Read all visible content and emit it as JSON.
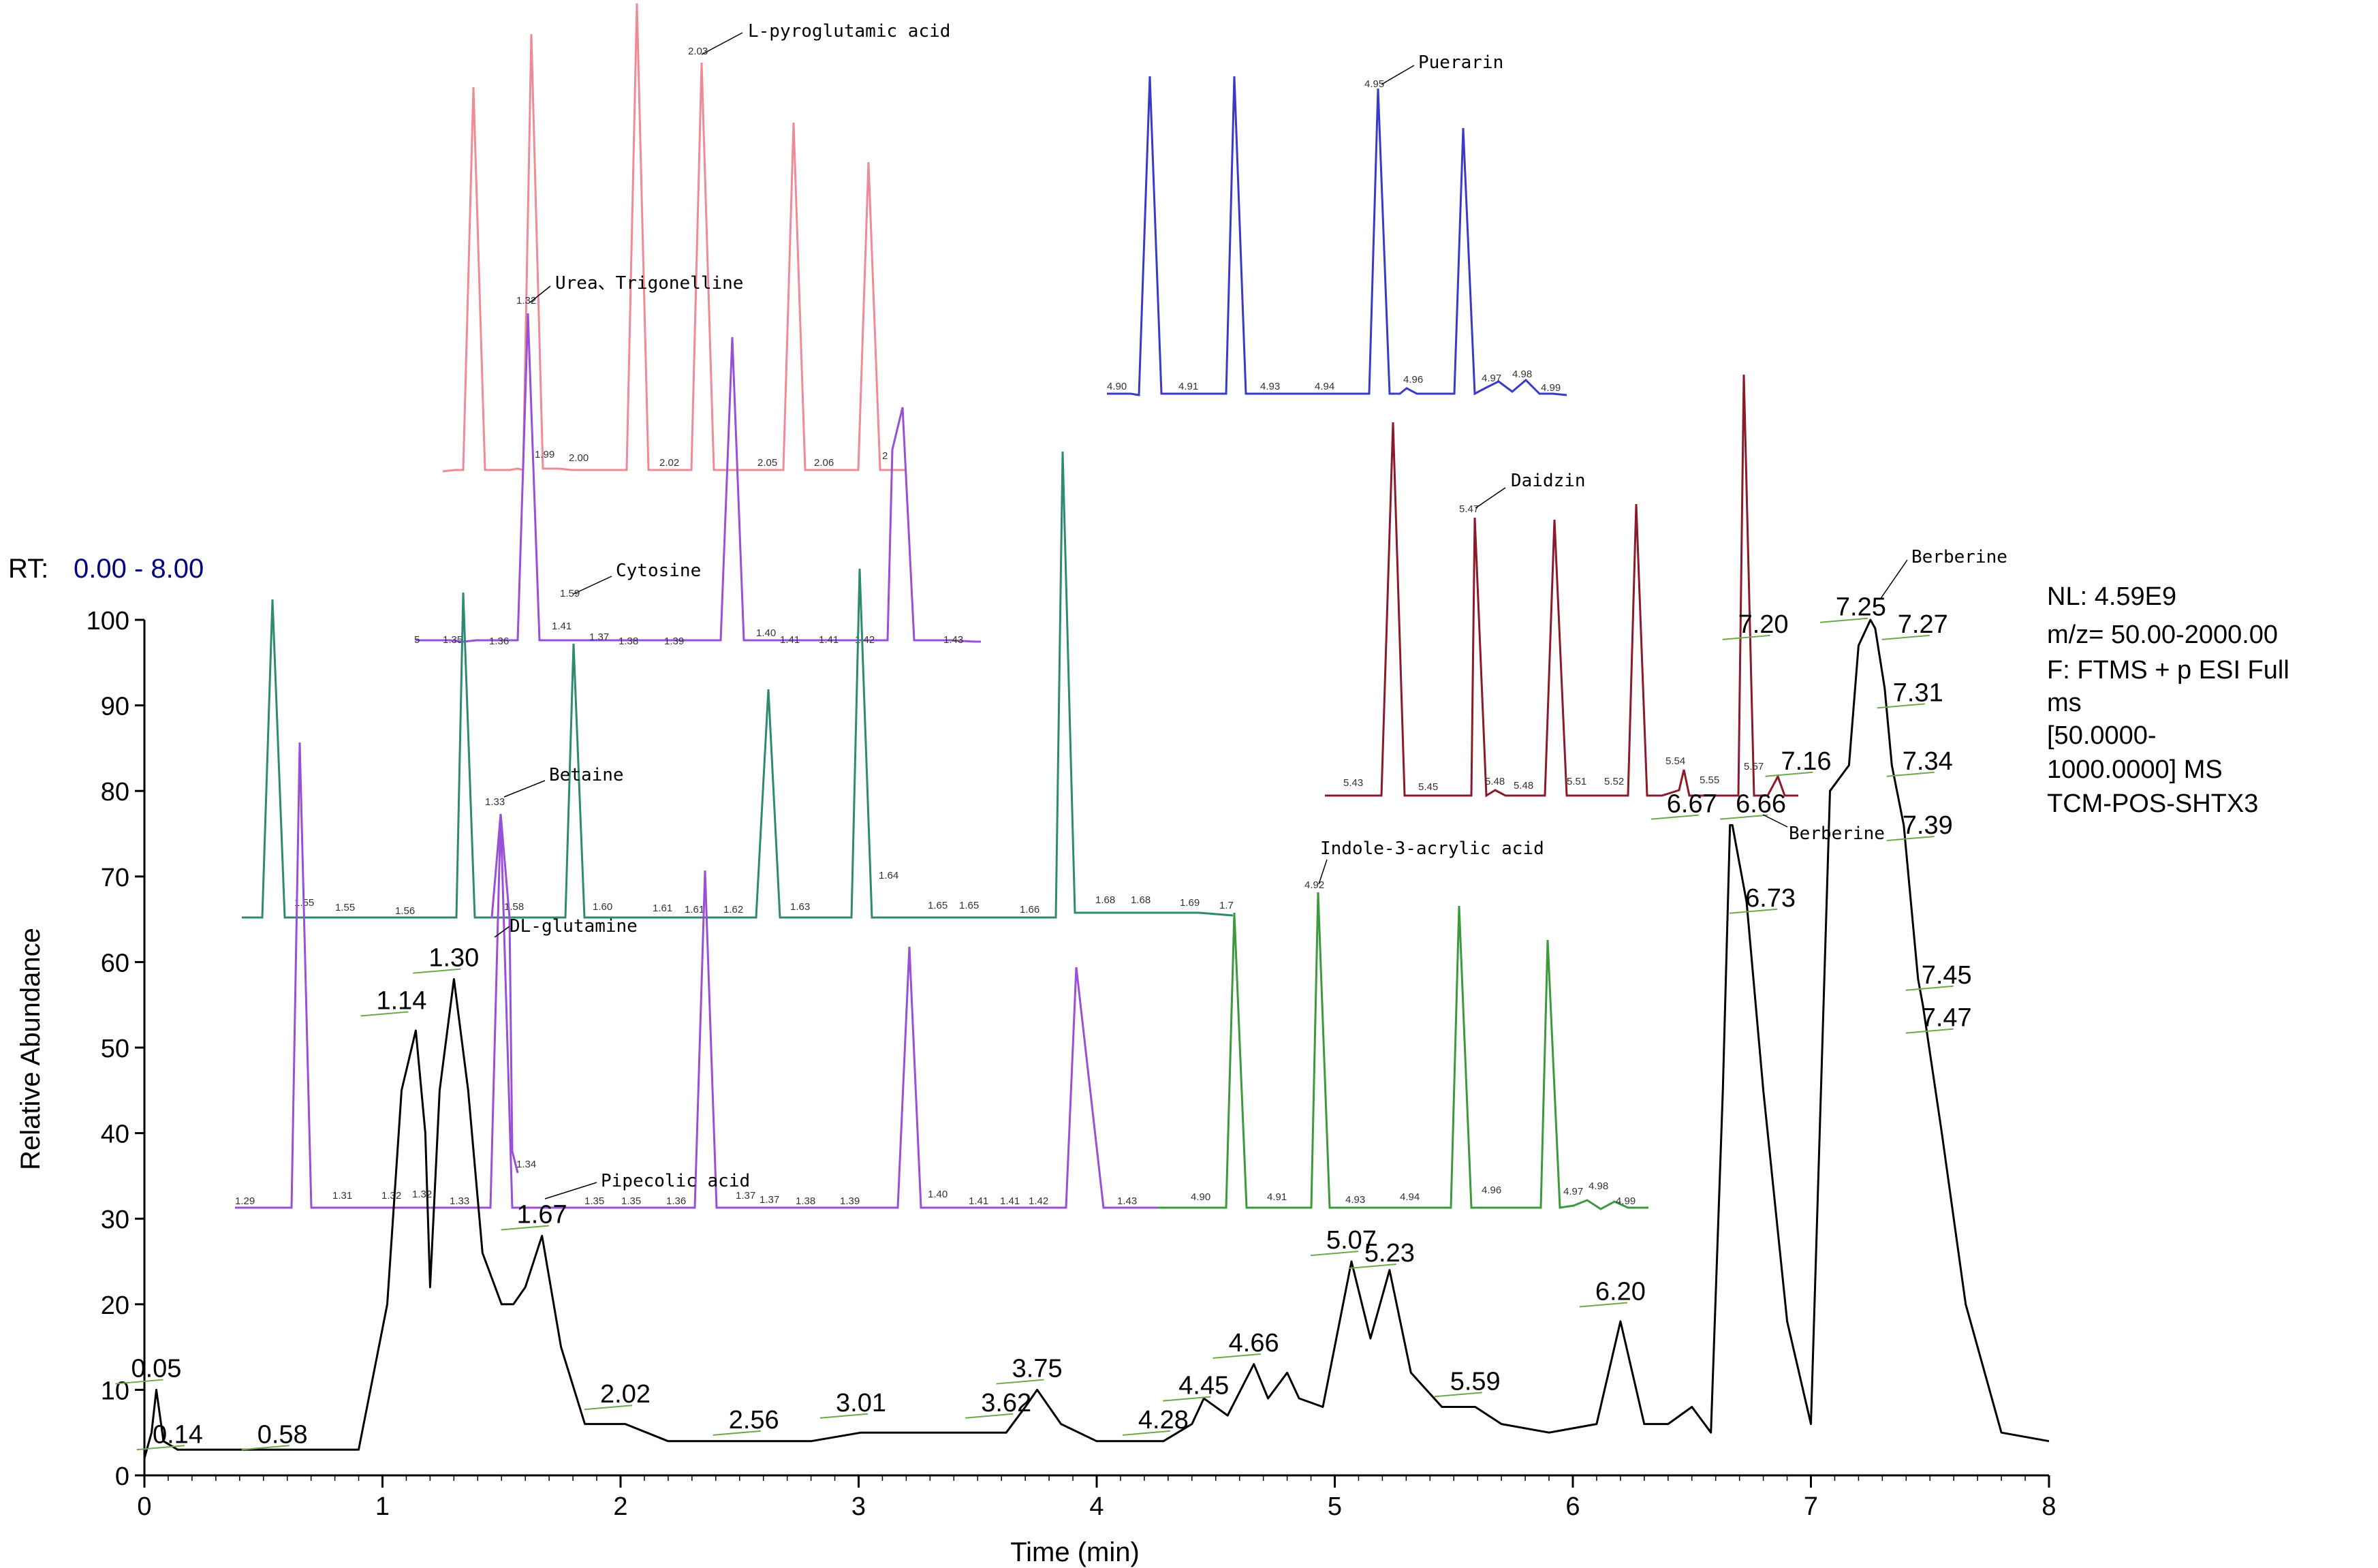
{
  "rt_label": "RT:",
  "rt_range": "0.00 - 8.00",
  "info_lines": [
    "NL: 4.59E9",
    "m/z= 50.00-2000.00",
    "F: FTMS + p ESI Full",
    "ms",
    "[50.0000-",
    "1000.0000]  MS",
    "TCM-POS-SHTX3"
  ],
  "colors": {
    "main": "#000000",
    "pink": "#f08a96",
    "violet": "#9a4fd8",
    "teal": "#2e8b72",
    "green": "#3c9a3c",
    "blue": "#3a3ac8",
    "maroon": "#8b1a2a",
    "annotation_line": "#6aaa4a",
    "rt_value": "#00007f"
  },
  "chart_data": [
    {
      "type": "line",
      "xlabel": "Time (min)",
      "ylabel": "Relative Abundance",
      "xlim": [
        0,
        8
      ],
      "ylim": [
        0,
        100
      ],
      "x_ticks": [
        "0",
        "1",
        "2",
        "3",
        "4",
        "5",
        "6",
        "7",
        "8"
      ],
      "y_ticks": [
        "0",
        "10",
        "20",
        "30",
        "40",
        "50",
        "60",
        "70",
        "80",
        "90",
        "100"
      ],
      "grid": false,
      "series": [
        {
          "x": [
            0,
            0.03,
            0.05,
            0.08,
            0.14,
            0.3,
            0.58,
            0.9,
            1.02,
            1.08,
            1.14,
            1.18,
            1.2,
            1.24,
            1.3,
            1.36,
            1.42,
            1.5,
            1.55,
            1.6,
            1.67,
            1.75,
            1.85,
            2.02,
            2.2,
            2.4,
            2.56,
            2.8,
            3.01,
            3.3,
            3.62,
            3.7,
            3.75,
            3.85,
            4.0,
            4.28,
            4.4,
            4.45,
            4.55,
            4.66,
            4.72,
            4.8,
            4.85,
            4.95,
            5.07,
            5.15,
            5.23,
            5.32,
            5.45,
            5.59,
            5.7,
            5.9,
            6.1,
            6.2,
            6.3,
            6.4,
            6.5,
            6.58,
            6.63,
            6.66,
            6.67,
            6.73,
            6.8,
            6.9,
            7.0,
            7.08,
            7.16,
            7.2,
            7.25,
            7.27,
            7.31,
            7.34,
            7.39,
            7.45,
            7.47,
            7.55,
            7.65,
            7.8,
            8.0
          ],
          "y": [
            2,
            5,
            10,
            4,
            3,
            3,
            3,
            3,
            20,
            45,
            52,
            40,
            22,
            45,
            58,
            45,
            26,
            20,
            20,
            22,
            28,
            15,
            6,
            6,
            4,
            4,
            4,
            4,
            5,
            5,
            5,
            8,
            10,
            6,
            4,
            4,
            6,
            9,
            7,
            13,
            9,
            12,
            9,
            8,
            25,
            16,
            24,
            12,
            8,
            8,
            6,
            5,
            6,
            18,
            6,
            6,
            8,
            5,
            45,
            76,
            76,
            67,
            45,
            18,
            6,
            80,
            83,
            97,
            100,
            99,
            92,
            83,
            76,
            58,
            55,
            40,
            20,
            5,
            4
          ]
        }
      ],
      "annotations": [
        "0.05",
        "0.14",
        "0.58",
        "1.14",
        "1.30",
        "1.67",
        "2.02",
        "2.56",
        "3.01",
        "3.62",
        "3.75",
        "4.28",
        "4.45",
        "4.66",
        "5.07",
        "5.23",
        "5.59",
        "6.20",
        "6.67",
        "6.66",
        "6.73",
        "7.16",
        "7.20",
        "7.25",
        "7.27",
        "7.31",
        "7.34",
        "7.39",
        "7.45",
        "7.47",
        "Berberine",
        "Berberine"
      ]
    },
    {
      "type": "line",
      "title": "L-pyroglutamic acid",
      "apex_label": "2.03",
      "tick_labels": [
        "1.99",
        "2.00",
        "2.02",
        "2.05",
        "2.06",
        "2"
      ],
      "series": [
        {
          "name": "L-pyroglutamic acid",
          "x": [
            1,
            2,
            3,
            4,
            5,
            6
          ],
          "y": [
            90,
            100,
            106,
            88,
            77,
            72
          ]
        }
      ]
    },
    {
      "type": "line",
      "title": "Urea、Trigonelline",
      "apex_label": "1.32",
      "tick_labels": [
        "5",
        "1.35",
        "1.36",
        "1.37",
        "1.38",
        "1.39",
        "1.40",
        "1.41",
        "1.41",
        "1.42",
        "1.43"
      ],
      "series": [
        {
          "name": "Urea、Trigonelline",
          "x": [
            1,
            2,
            3,
            4,
            5
          ],
          "y": [
            100,
            88,
            80,
            93,
            71
          ]
        }
      ]
    },
    {
      "type": "line",
      "title": "Cytosine",
      "apex_label": "1.59",
      "tick_labels": [
        "1.55",
        "1.55",
        "1.56",
        "1.58",
        "1.60",
        "1.61",
        "1.61",
        "1.62",
        "1.63",
        "1.64",
        "1.65",
        "1.65",
        "1.66",
        "1.68",
        "1.68",
        "1.69",
        "1.7"
      ],
      "series": [
        {
          "name": "Cytosine",
          "x": [
            1,
            2,
            3,
            4,
            5,
            6,
            7
          ],
          "y": [
            80,
            70,
            80,
            61,
            75,
            100,
            90
          ]
        }
      ]
    },
    {
      "type": "line",
      "title": "Betaine",
      "apex_label": "1.33",
      "tick_labels": [
        "1.29",
        "1.31",
        "1.32",
        "1.32",
        "1.33",
        "1.34"
      ],
      "series": [
        {
          "name": "Betaine",
          "x": [
            1,
            2,
            3
          ],
          "y": [
            100,
            80,
            58
          ]
        }
      ]
    },
    {
      "type": "line",
      "title": "Pipecolic acid",
      "apex_label": "1.34",
      "tick_labels": [
        "1.35",
        "1.35",
        "1.36",
        "1.37",
        "1.37",
        "1.38",
        "1.39",
        "1.40",
        "1.41",
        "1.41",
        "1.42",
        "1.43"
      ],
      "series": [
        {
          "name": "Pipecolic acid",
          "x": [
            1,
            2,
            3,
            4
          ],
          "y": [
            100,
            77,
            66,
            59
          ]
        }
      ]
    },
    {
      "type": "line",
      "title": "DL-glutamine",
      "tick_labels": [],
      "series": [
        {
          "name": "DL-glutamine",
          "x": [
            1
          ],
          "y": [
            100
          ]
        }
      ]
    },
    {
      "type": "line",
      "title": "Puerarin",
      "apex_label": "4.95",
      "tick_labels": [
        "4.90",
        "4.91",
        "4.93",
        "4.94",
        "4.96",
        "4.97",
        "4.98",
        "4.99"
      ],
      "series": [
        {
          "name": "Puerarin",
          "x": [
            1,
            2,
            3,
            4
          ],
          "y": [
            100,
            100,
            93,
            90
          ]
        }
      ]
    },
    {
      "type": "line",
      "title": "Daidzin",
      "apex_label": "5.47",
      "tick_labels": [
        "5.43",
        "5.45",
        "5.48",
        "5.48",
        "5.51",
        "5.52",
        "5.54",
        "5.55",
        "5.57"
      ],
      "series": [
        {
          "name": "Daidzin",
          "x": [
            1,
            2,
            3,
            4,
            5
          ],
          "y": [
            86,
            68,
            60,
            68,
            100
          ]
        }
      ]
    },
    {
      "type": "line",
      "title": "Indole-3-acrylic acid",
      "apex_label": "4.92",
      "tick_labels": [
        "4.90",
        "4.91",
        "4.93",
        "4.94",
        "4.96",
        "4.97",
        "4.98",
        "4.99"
      ],
      "series": [
        {
          "name": "Indole-3-acrylic acid",
          "x": [
            1,
            2,
            3,
            4
          ],
          "y": [
            100,
            100,
            100,
            93
          ]
        }
      ]
    }
  ]
}
